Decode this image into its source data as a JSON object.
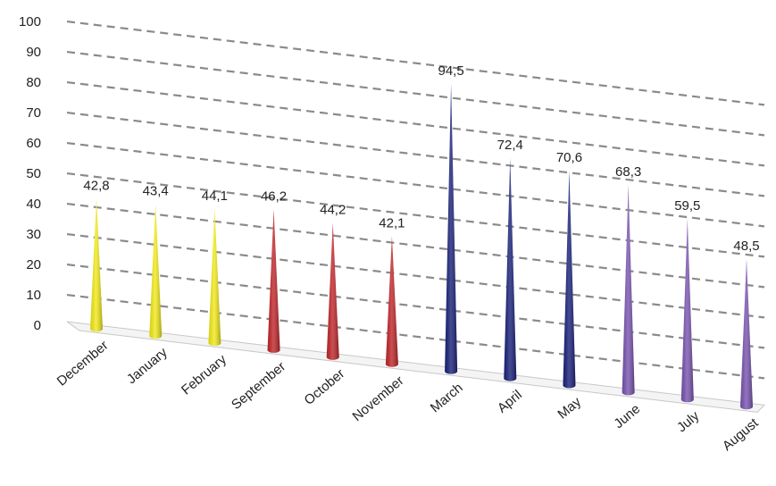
{
  "chart_data": {
    "type": "bar",
    "subtype": "3d-cone",
    "categories": [
      "December",
      "January",
      "February",
      "September",
      "October",
      "November",
      "March",
      "April",
      "May",
      "June",
      "July",
      "August"
    ],
    "values": [
      42.8,
      43.4,
      44.1,
      46.2,
      44.2,
      42.1,
      94.5,
      72.4,
      70.6,
      68.3,
      59.5,
      48.5
    ],
    "data_labels": [
      "42,8",
      "43,4",
      "44,1",
      "46,2",
      "44,2",
      "42,1",
      "94,5",
      "72,4",
      "70,6",
      "68,3",
      "59,5",
      "48,5"
    ],
    "colors": [
      "#f2ea1c",
      "#f2ea1c",
      "#f2ea1c",
      "#c0282c",
      "#c0282c",
      "#c0282c",
      "#1b237a",
      "#1b237a",
      "#1b237a",
      "#7a55b0",
      "#7a55b0",
      "#7a55b0"
    ],
    "ylim": [
      0,
      100
    ],
    "yticks": [
      "0",
      "10",
      "20",
      "30",
      "40",
      "50",
      "60",
      "70",
      "80",
      "90",
      "100"
    ],
    "grid": true,
    "title": "",
    "xlabel": "",
    "ylabel": ""
  }
}
